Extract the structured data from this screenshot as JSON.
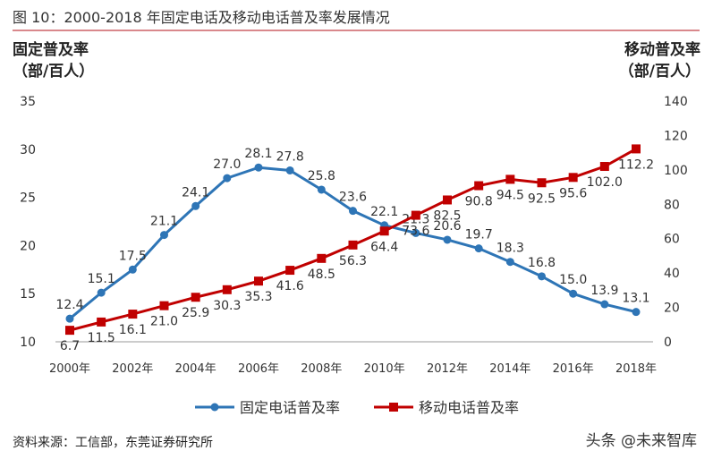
{
  "title": "图 10：2000-2018 年固定电话及移动电话普及率发展情况",
  "source": "资料来源：工信部，东莞证券研究所",
  "watermark": "头条 @未来智库",
  "chart_data": {
    "type": "line",
    "x": [
      2000,
      2001,
      2002,
      2003,
      2004,
      2005,
      2006,
      2007,
      2008,
      2009,
      2010,
      2011,
      2012,
      2013,
      2014,
      2015,
      2016,
      2017,
      2018
    ],
    "x_tick_labels": [
      "2000年",
      "2002年",
      "2004年",
      "2006年",
      "2008年",
      "2010年",
      "2012年",
      "2014年",
      "2016年",
      "2018年"
    ],
    "ylabel_left": [
      "固定普及率",
      "（部/百人）"
    ],
    "ylabel_right": [
      "移动普及率",
      "（部/百人）"
    ],
    "ylim_left": [
      10,
      35
    ],
    "yticks_left": [
      10,
      15,
      20,
      25,
      30,
      35
    ],
    "ylim_right": [
      0,
      140
    ],
    "yticks_right": [
      0,
      20,
      40,
      60,
      80,
      100,
      120,
      140
    ],
    "grid": false,
    "legend": "bottom",
    "series": [
      {
        "name": "固定电话普及率",
        "axis": "left",
        "color": "#2e75b6",
        "marker": "circle",
        "values": [
          12.4,
          15.1,
          17.5,
          21.1,
          24.1,
          27.0,
          28.1,
          27.8,
          25.8,
          23.6,
          22.1,
          21.3,
          20.6,
          19.7,
          18.3,
          16.8,
          15.0,
          13.9,
          13.1
        ]
      },
      {
        "name": "移动电话普及率",
        "axis": "right",
        "color": "#c00000",
        "marker": "square",
        "values": [
          6.7,
          11.5,
          16.1,
          21.0,
          25.9,
          30.3,
          35.3,
          41.6,
          48.5,
          56.3,
          64.4,
          73.6,
          82.5,
          90.8,
          94.5,
          92.5,
          95.6,
          102.0,
          112.2
        ]
      }
    ]
  }
}
